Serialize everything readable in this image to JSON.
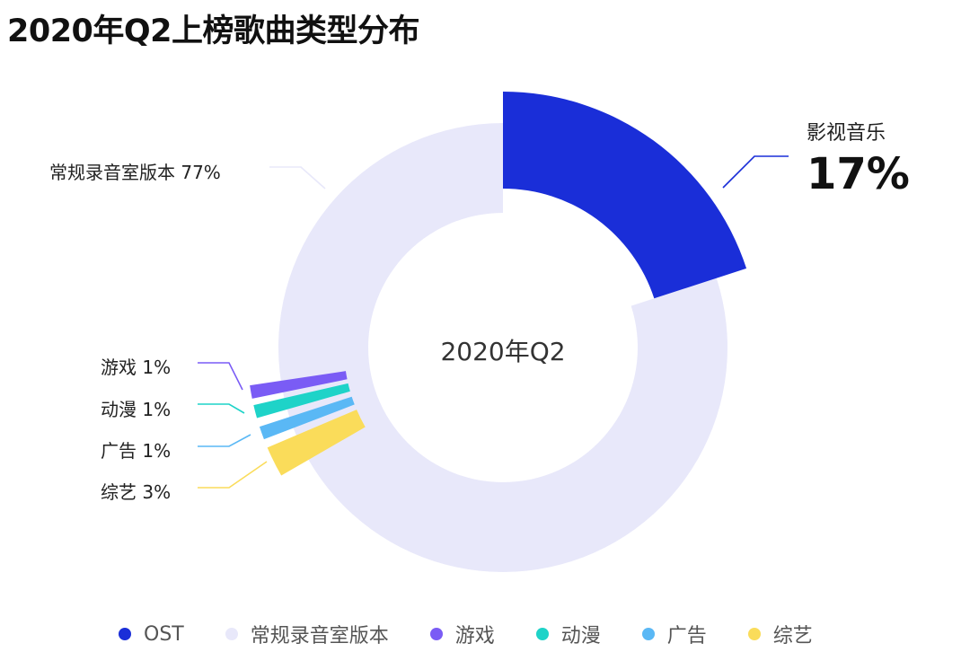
{
  "title": "2020年Q2上榜歌曲类型分布",
  "chart_data": {
    "type": "pie",
    "subtype": "donut",
    "title": "2020年Q2上榜歌曲类型分布",
    "center_label": "2020年Q2",
    "categories": [
      "OST",
      "常规录音室版本",
      "游戏",
      "动漫",
      "广告",
      "综艺"
    ],
    "values": [
      17,
      77,
      1,
      1,
      1,
      3
    ],
    "unit": "%",
    "colors": [
      "#1a2ed8",
      "#e8e8fa",
      "#7a5cf5",
      "#1ed3c8",
      "#5ab8f5",
      "#fadc5a"
    ],
    "labels": {
      "ost_name": "影视音乐",
      "ost_value": "17%",
      "studio": "常规录音室版本 77%",
      "game": "游戏 1%",
      "anime": "动漫 1%",
      "ad": "广告 1%",
      "variety": "综艺 3%"
    },
    "legend": [
      "OST",
      "常规录音室版本",
      "游戏",
      "动漫",
      "广告",
      "综艺"
    ],
    "legend_position": "bottom"
  }
}
